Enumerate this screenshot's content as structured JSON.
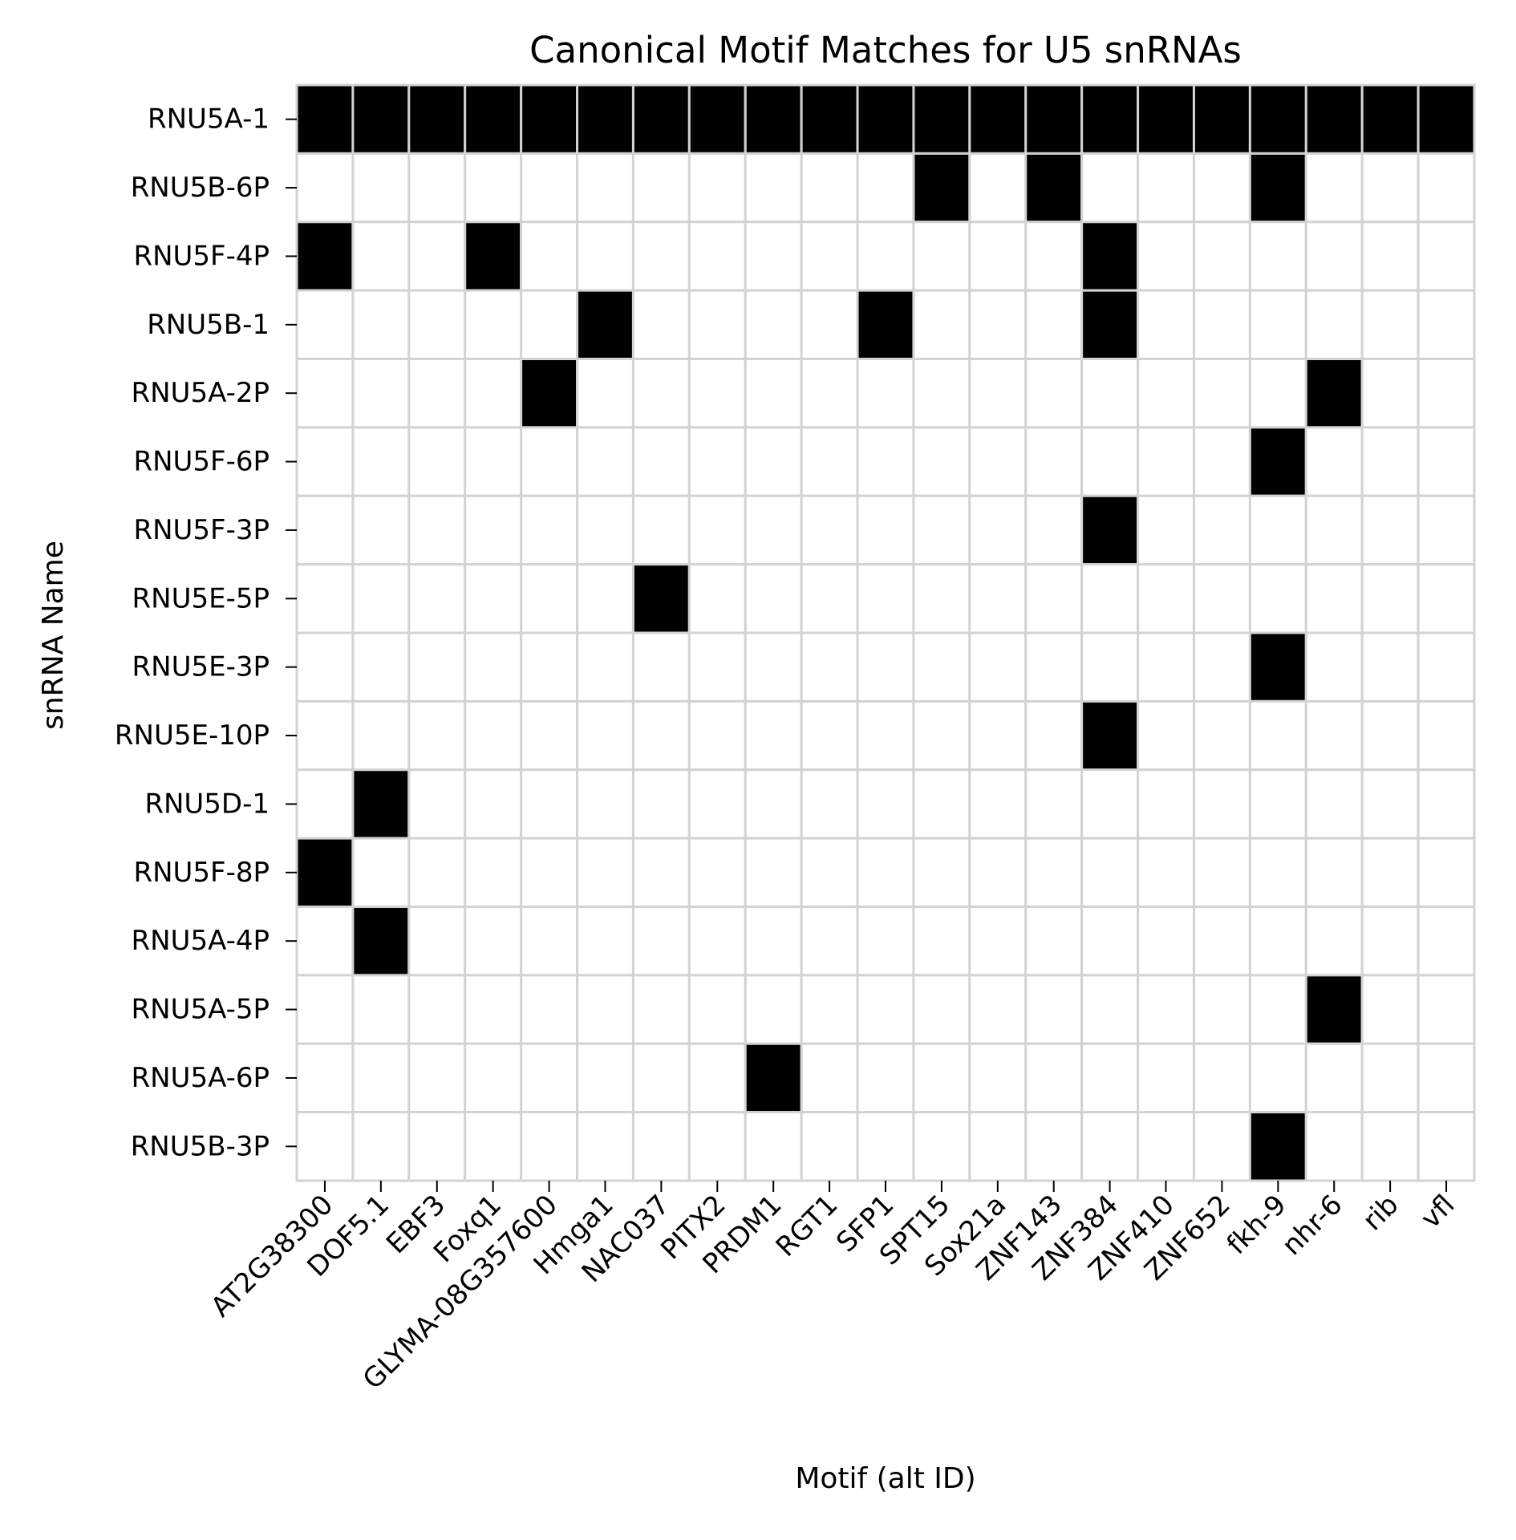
{
  "chart_data": {
    "type": "heatmap",
    "title": "Canonical Motif Matches for U5 snRNAs",
    "xlabel": "Motif (alt ID)",
    "ylabel": "snRNA Name",
    "x_categories": [
      "AT2G38300",
      "DOF5.1",
      "EBF3",
      "Foxq1",
      "GLYMA-08G357600",
      "Hmga1",
      "NAC037",
      "PITX2",
      "PRDM1",
      "RGT1",
      "SFP1",
      "SPT15",
      "Sox21a",
      "ZNF143",
      "ZNF384",
      "ZNF410",
      "ZNF652",
      "fkh-9",
      "nhr-6",
      "rib",
      "vfl"
    ],
    "y_categories": [
      "RNU5A-1",
      "RNU5B-6P",
      "RNU5F-4P",
      "RNU5B-1",
      "RNU5A-2P",
      "RNU5F-6P",
      "RNU5F-3P",
      "RNU5E-5P",
      "RNU5E-3P",
      "RNU5E-10P",
      "RNU5D-1",
      "RNU5F-8P",
      "RNU5A-4P",
      "RNU5A-5P",
      "RNU5A-6P",
      "RNU5B-3P"
    ],
    "values": [
      [
        1,
        1,
        1,
        1,
        1,
        1,
        1,
        1,
        1,
        1,
        1,
        1,
        1,
        1,
        1,
        1,
        1,
        1,
        1,
        1,
        1
      ],
      [
        0,
        0,
        0,
        0,
        0,
        0,
        0,
        0,
        0,
        0,
        0,
        1,
        0,
        1,
        0,
        0,
        0,
        1,
        0,
        0,
        0
      ],
      [
        1,
        0,
        0,
        1,
        0,
        0,
        0,
        0,
        0,
        0,
        0,
        0,
        0,
        0,
        1,
        0,
        0,
        0,
        0,
        0,
        0
      ],
      [
        0,
        0,
        0,
        0,
        0,
        1,
        0,
        0,
        0,
        0,
        1,
        0,
        0,
        0,
        1,
        0,
        0,
        0,
        0,
        0,
        0
      ],
      [
        0,
        0,
        0,
        0,
        1,
        0,
        0,
        0,
        0,
        0,
        0,
        0,
        0,
        0,
        0,
        0,
        0,
        0,
        1,
        0,
        0
      ],
      [
        0,
        0,
        0,
        0,
        0,
        0,
        0,
        0,
        0,
        0,
        0,
        0,
        0,
        0,
        0,
        0,
        0,
        1,
        0,
        0,
        0
      ],
      [
        0,
        0,
        0,
        0,
        0,
        0,
        0,
        0,
        0,
        0,
        0,
        0,
        0,
        0,
        1,
        0,
        0,
        0,
        0,
        0,
        0
      ],
      [
        0,
        0,
        0,
        0,
        0,
        0,
        1,
        0,
        0,
        0,
        0,
        0,
        0,
        0,
        0,
        0,
        0,
        0,
        0,
        0,
        0
      ],
      [
        0,
        0,
        0,
        0,
        0,
        0,
        0,
        0,
        0,
        0,
        0,
        0,
        0,
        0,
        0,
        0,
        0,
        1,
        0,
        0,
        0
      ],
      [
        0,
        0,
        0,
        0,
        0,
        0,
        0,
        0,
        0,
        0,
        0,
        0,
        0,
        0,
        1,
        0,
        0,
        0,
        0,
        0,
        0
      ],
      [
        0,
        1,
        0,
        0,
        0,
        0,
        0,
        0,
        0,
        0,
        0,
        0,
        0,
        0,
        0,
        0,
        0,
        0,
        0,
        0,
        0
      ],
      [
        1,
        0,
        0,
        0,
        0,
        0,
        0,
        0,
        0,
        0,
        0,
        0,
        0,
        0,
        0,
        0,
        0,
        0,
        0,
        0,
        0
      ],
      [
        0,
        1,
        0,
        0,
        0,
        0,
        0,
        0,
        0,
        0,
        0,
        0,
        0,
        0,
        0,
        0,
        0,
        0,
        0,
        0,
        0
      ],
      [
        0,
        0,
        0,
        0,
        0,
        0,
        0,
        0,
        0,
        0,
        0,
        0,
        0,
        0,
        0,
        0,
        0,
        0,
        1,
        0,
        0
      ],
      [
        0,
        0,
        0,
        0,
        0,
        0,
        0,
        0,
        1,
        0,
        0,
        0,
        0,
        0,
        0,
        0,
        0,
        0,
        0,
        0,
        0
      ],
      [
        0,
        0,
        0,
        0,
        0,
        0,
        0,
        0,
        0,
        0,
        0,
        0,
        0,
        0,
        0,
        0,
        0,
        1,
        0,
        0,
        0
      ]
    ],
    "colors": {
      "match": "#000000",
      "no_match": "#ffffff",
      "grid": "#d3d3d3"
    },
    "grid": true,
    "legend": "none"
  }
}
